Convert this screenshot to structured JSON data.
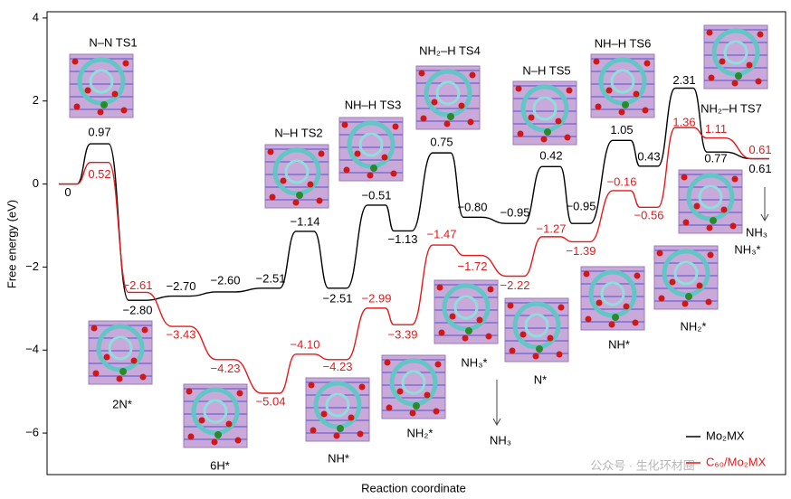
{
  "chart_data": {
    "type": "energy-profile",
    "xlabel": "Reaction coordinate",
    "ylabel": "Free energy (eV)",
    "ylim": [
      -7,
      4.15
    ],
    "yticks": [
      {
        "value": -6,
        "label": "−6"
      },
      {
        "value": -4,
        "label": "−4"
      },
      {
        "value": -2,
        "label": "−2"
      },
      0,
      2,
      4
    ],
    "categories": [
      null,
      null,
      null,
      null,
      null,
      null,
      null,
      null,
      null,
      null,
      null,
      null,
      null,
      null,
      null,
      null,
      null,
      null,
      null,
      null
    ],
    "legend": "lower right",
    "series": [
      {
        "name": "Mo₂MX",
        "color": "#000000",
        "values": [
          0,
          0.97,
          -2.8,
          -2.7,
          -2.6,
          -2.51,
          -1.14,
          -2.51,
          -0.51,
          -1.13,
          0.75,
          -0.8,
          -0.95,
          0.42,
          -0.95,
          1.05,
          0.43,
          2.31,
          0.77,
          0.61
        ],
        "value_labels": [
          "0",
          "0.97",
          "−2.80",
          "−2.70",
          "−2.60",
          "−2.51",
          "−1.14",
          "−2.51",
          "−0.51",
          "−1.13",
          "0.75",
          "−0.80",
          "−0.95",
          "0.42",
          "−0.95",
          "1.05",
          "0.43",
          "2.31",
          "0.77",
          "0.61"
        ]
      },
      {
        "name": "C₆₀/Mo₂MX",
        "color": "#e31a1c",
        "values": [
          0,
          0.52,
          -2.61,
          -3.43,
          -4.23,
          -5.04,
          -4.1,
          -4.23,
          -2.99,
          -3.39,
          -1.47,
          -1.72,
          -2.22,
          -1.27,
          -1.39,
          -0.16,
          -0.56,
          1.36,
          1.11,
          0.61
        ],
        "value_labels": [
          null,
          "0.52",
          "−2.61",
          "−3.43",
          "−4.23",
          "−5.04",
          "−4.10",
          "−4.23",
          "−2.99",
          "−3.39",
          "−1.47",
          "−1.72",
          "−2.22",
          "−1.27",
          "−1.39",
          "−0.16",
          "−0.56",
          "1.36",
          "1.11",
          "0.61"
        ]
      }
    ],
    "annotations": [
      "N–N TS1",
      "N–H TS2",
      "NH–H TS3",
      "NH₂–H TS4",
      "N–H TS5",
      "NH–H TS6",
      "NH₂–H TS7",
      "2N*",
      "6H*",
      "NH*",
      "NH₂*",
      "NH₃*",
      "N*",
      "NH*",
      "NH₂*",
      "NH₃*",
      "NH₃",
      "NH₃"
    ],
    "watermark": "公众号 · 生化环材圈"
  }
}
